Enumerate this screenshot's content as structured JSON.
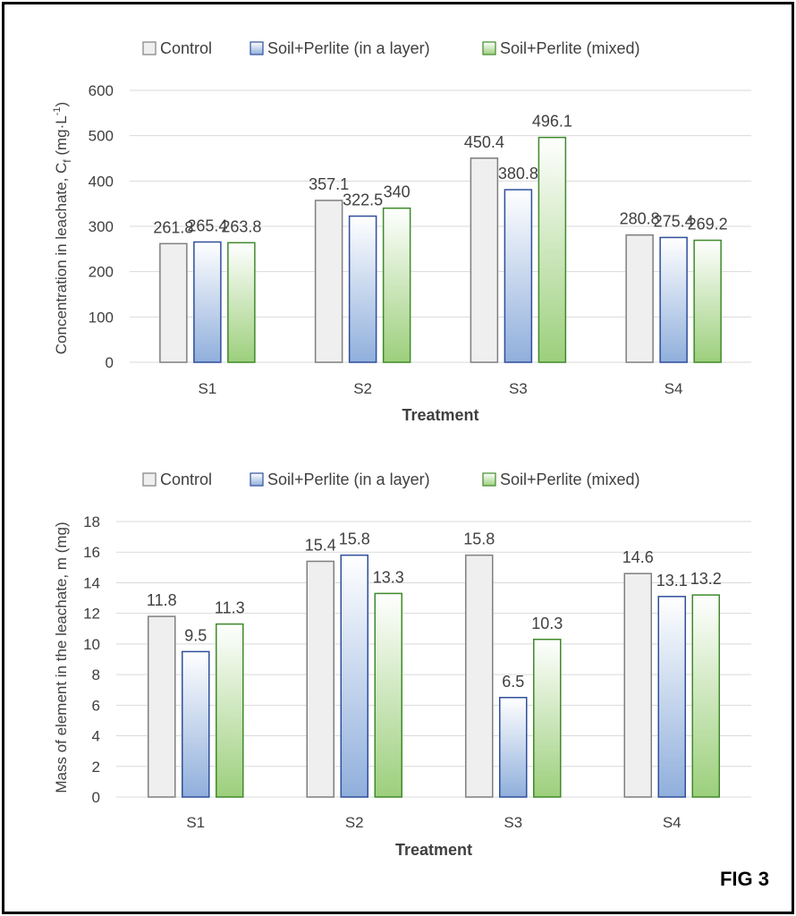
{
  "figure_label": "FIG 3",
  "colors": {
    "control_fill": "#efefef",
    "control_stroke": "#7f7f7f",
    "layer_fill_top": "#ffffff",
    "layer_fill_bottom": "#90afdc",
    "layer_stroke": "#2f4f9a",
    "mixed_fill_top": "#ffffff",
    "mixed_fill_bottom": "#9ccf7c",
    "mixed_stroke": "#3f8a2a",
    "grid": "#d9d9d9",
    "text": "#404040"
  },
  "chart_data": [
    {
      "type": "bar",
      "categories": [
        "S1",
        "S2",
        "S3",
        "S4"
      ],
      "series": [
        {
          "name": "Control",
          "values": [
            261.8,
            357.1,
            450.4,
            280.8
          ]
        },
        {
          "name": "Soil+Perlite (in a layer)",
          "values": [
            265.4,
            322.5,
            380.8,
            275.4
          ]
        },
        {
          "name": "Soil+Perlite (mixed)",
          "values": [
            263.8,
            340,
            496.1,
            269.2
          ]
        }
      ],
      "data_labels": [
        [
          "261.8",
          "357.1",
          "450.4",
          "280.8"
        ],
        [
          "265.4",
          "322.5",
          "380.8",
          "275.4"
        ],
        [
          "263.8",
          "340",
          "496.1",
          "269.2"
        ]
      ],
      "ylabel_main": "Concentration in leachate, C",
      "ylabel_sub": "f",
      "ylabel_unit_pre": " (mg·L",
      "ylabel_unit_sup": "-1",
      "ylabel_unit_post": ")",
      "xlabel": "Treatment",
      "ylim": [
        0,
        600
      ],
      "yticks": [
        0,
        100,
        200,
        300,
        400,
        500,
        600
      ],
      "legend_position": "top",
      "grid": true
    },
    {
      "type": "bar",
      "categories": [
        "S1",
        "S2",
        "S3",
        "S4"
      ],
      "series": [
        {
          "name": "Control",
          "values": [
            11.8,
            15.4,
            15.8,
            14.6
          ]
        },
        {
          "name": "Soil+Perlite (in a layer)",
          "values": [
            9.5,
            15.8,
            6.5,
            13.1
          ]
        },
        {
          "name": "Soil+Perlite (mixed)",
          "values": [
            11.3,
            13.3,
            10.3,
            13.2
          ]
        }
      ],
      "data_labels": [
        [
          "11.8",
          "15.4",
          "15.8",
          "14.6"
        ],
        [
          "9.5",
          "15.8",
          "6.5",
          "13.1"
        ],
        [
          "11.3",
          "13.3",
          "10.3",
          "13.2"
        ]
      ],
      "ylabel": "Mass of element in the leachate, m (mg)",
      "xlabel": "Treatment",
      "ylim": [
        0,
        18
      ],
      "yticks": [
        0,
        2,
        4,
        6,
        8,
        10,
        12,
        14,
        16,
        18
      ],
      "legend_position": "top",
      "grid": true
    }
  ]
}
